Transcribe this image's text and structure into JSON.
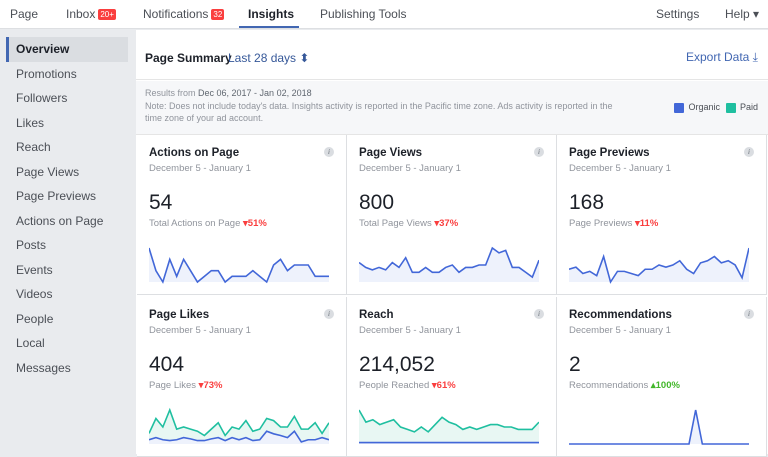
{
  "topnav": {
    "page": "Page",
    "inbox": "Inbox",
    "inbox_badge": "20+",
    "notifications": "Notifications",
    "notifications_badge": "32",
    "insights": "Insights",
    "publishing": "Publishing Tools",
    "settings": "Settings",
    "help": "Help ▾"
  },
  "sidebar": {
    "items": [
      "Overview",
      "Promotions",
      "Followers",
      "Likes",
      "Reach",
      "Page Views",
      "Page Previews",
      "Actions on Page",
      "Posts",
      "Events",
      "Videos",
      "People",
      "Local",
      "Messages"
    ]
  },
  "summary": {
    "title": "Page Summary",
    "range": "Last 28 days ⬍",
    "export": "Export Data ⤓",
    "results_prefix": "Results from ",
    "results_range": "Dec 06, 2017 - Jan 02, 2018",
    "note": "Note: Does not include today's data. Insights activity is reported in the Pacific time zone. Ads activity is reported in the time zone of your ad account.",
    "legend": [
      {
        "label": "Organic",
        "color": "#4267d8"
      },
      {
        "label": "Paid",
        "color": "#1fbfa0"
      }
    ]
  },
  "colors": {
    "organic": "#4267d8",
    "paid": "#1fbfa0",
    "down": "#fa3e3e",
    "up": "#42b72a"
  },
  "cards": [
    {
      "title": "Actions on Page",
      "date": "December 5 - January 1",
      "value": "54",
      "label": "Total Actions on Page",
      "trend": "down",
      "change": "51%",
      "organic": [
        6,
        2,
        0,
        4,
        1,
        4,
        2,
        0,
        1,
        2,
        2,
        0,
        1,
        1,
        1,
        2,
        1,
        0,
        3,
        4,
        2,
        3,
        3,
        3,
        1,
        1,
        1
      ]
    },
    {
      "title": "Page Views",
      "date": "December 5 - January 1",
      "value": "800",
      "label": "Total Page Views",
      "trend": "down",
      "change": "37%",
      "organic": [
        4,
        3,
        2.5,
        3,
        2.5,
        4,
        3,
        5,
        2,
        2,
        3,
        2,
        2,
        3,
        3.5,
        2,
        3,
        3,
        3.5,
        3.5,
        7,
        6,
        6.5,
        3,
        3,
        2,
        1,
        4.5
      ]
    },
    {
      "title": "Page Previews",
      "date": "December 5 - January 1",
      "value": "168",
      "label": "Page Previews",
      "trend": "down",
      "change": "11%",
      "organic": [
        3,
        3.5,
        2,
        2.5,
        1.5,
        6,
        0,
        2.5,
        2.5,
        2,
        1.5,
        3,
        3,
        4,
        3.5,
        4,
        5,
        3,
        2,
        4.5,
        5,
        6,
        4.5,
        5,
        4,
        1,
        8
      ]
    },
    {
      "title": "Page Likes",
      "date": "December 5 - January 1",
      "value": "404",
      "label": "Page Likes",
      "trend": "down",
      "change": "73%",
      "organic": [
        1,
        1.5,
        1,
        0.8,
        1,
        1.5,
        1.2,
        0.8,
        0.8,
        1.2,
        1.5,
        0.8,
        1.5,
        1,
        1.5,
        0.8,
        1,
        3,
        2.4,
        2,
        1.5,
        3,
        0.5,
        1,
        1,
        1.5,
        1
      ],
      "paid": [
        2.5,
        6,
        4,
        8,
        3.5,
        4,
        3.5,
        3,
        2,
        3.5,
        5,
        2,
        4,
        3.5,
        5.5,
        3,
        3.5,
        6,
        5.5,
        4,
        4,
        6.5,
        3.5,
        3.5,
        5,
        2.5,
        5
      ]
    },
    {
      "title": "Reach",
      "date": "December 5 - January 1",
      "value": "214,052",
      "label": "People Reached",
      "trend": "down",
      "change": "61%",
      "organic": [
        0.3,
        0.3,
        0.3,
        0.3,
        0.3,
        0.3,
        0.3,
        0.3,
        0.3,
        0.3,
        0.3,
        0.3,
        0.3,
        0.3,
        0.3,
        0.3,
        0.3,
        0.3,
        0.3,
        0.3,
        0.3,
        0.3,
        0.3,
        0.3,
        0.3,
        0.3,
        0.3
      ],
      "paid": [
        7,
        4.5,
        5,
        4,
        4.5,
        5,
        3.5,
        3,
        2.5,
        3.5,
        2.5,
        4,
        5.5,
        4.5,
        4,
        3,
        3.5,
        3,
        3.5,
        4,
        4,
        3.5,
        3.5,
        3,
        3,
        3,
        4.5
      ]
    },
    {
      "title": "Recommendations",
      "date": "December 5 - January 1",
      "value": "2",
      "label": "Recommendations",
      "trend": "up",
      "change": "100%",
      "organic": [
        0,
        0,
        0,
        0,
        0,
        0,
        0,
        0,
        0,
        0,
        0,
        0,
        0,
        0,
        0,
        0,
        0,
        0,
        0,
        2,
        0,
        0,
        0,
        0,
        0,
        0,
        0,
        0
      ]
    }
  ]
}
